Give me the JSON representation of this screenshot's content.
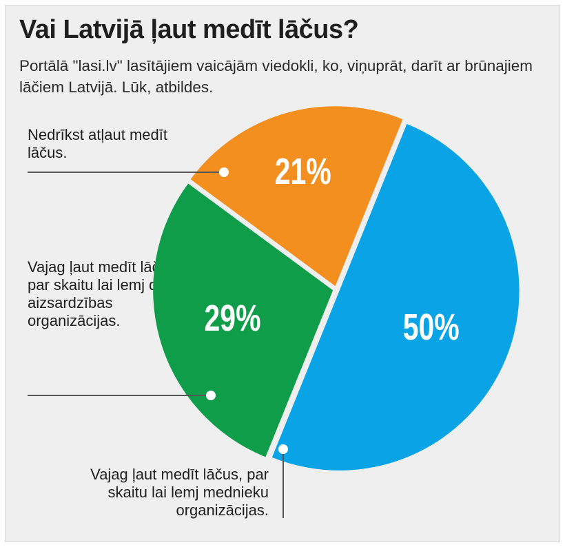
{
  "title": "Vai Latvijā ļaut medīt lāčus?",
  "subtitle": "Portālā \"lasi.lv\" lasītājiem vaicājām viedokli, ko, viņuprāt, darīt ar brūnajiem lāčiem Latvijā. Lūk, atbildes.",
  "labels": {
    "forbid": "Nedrīkst atļaut medīt lāčus.",
    "nature": "Vajag ļaut medīt lāčus, par skaitu lai lemj dabas aizsardzības organizācijas.",
    "hunters": "Vajag ļaut medīt lāčus, par skaitu lai lemj mednieku organizācijas."
  },
  "chart_data": {
    "type": "pie",
    "slices": [
      {
        "label": "Vajag ļaut medīt lāčus, par skaitu lai lemj mednieku organizācijas.",
        "value": 50,
        "display": "50%",
        "color": "#0aa3e6"
      },
      {
        "label": "Vajag ļaut medīt lāčus, par skaitu lai lemj dabas aizsardzības organizācijas.",
        "value": 29,
        "display": "29%",
        "color": "#0f9d4a"
      },
      {
        "label": "Nedrīkst atļaut medīt lāčus.",
        "value": 21,
        "display": "21%",
        "color": "#f28f1f"
      }
    ],
    "title": "Vai Latvijā ļaut medīt lāčus?"
  }
}
